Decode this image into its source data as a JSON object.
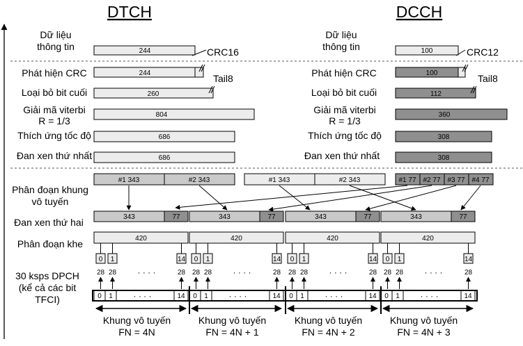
{
  "titles": {
    "dtch": "DTCH",
    "dcch": "DCCH"
  },
  "dtch_labels": [
    "Dữ liệu",
    "thông tin",
    "Phát hiện CRC",
    "Loại bỏ bit cuối",
    "Giải mã viterbi",
    "R = 1/3",
    "Thích ứng tốc độ",
    "Đan xen thứ nhất"
  ],
  "dcch_labels": [
    "Dữ liệu",
    "thông tin",
    "Phát hiện CRC",
    "Loại bỏ bit cuối",
    "Giải mã viterbi",
    "R = 1/3",
    "Thích ứng tốc độ",
    "Đan xen thứ nhất"
  ],
  "bottom_labels": [
    "Phân đoạn khung",
    "vô tuyến",
    "Đan xen thứ hai",
    "Phân đoạn khe",
    "30 ksps DPCH",
    "(kể cả các bit",
    "TFCI)"
  ],
  "annotations": {
    "crc16": "CRC16",
    "tail8_dtch": "Tail8",
    "crc12": "CRC12",
    "tail8_dcch": "Tail8"
  },
  "dtch_bars": [
    "244",
    "244",
    "260",
    "804",
    "686",
    "686"
  ],
  "dcch_bars": [
    "100",
    "100",
    "112",
    "360",
    "308",
    "308"
  ],
  "dtch_segments": [
    "#1  343",
    "#2  343"
  ],
  "dtch_segments_2": [
    "#1  343",
    "#2  343"
  ],
  "dcch_segments": [
    "#1 77",
    "#2 77",
    "#3 77",
    "#4 77"
  ],
  "interleave": {
    "left": "343",
    "right": "77"
  },
  "slot_value": "420",
  "slot_labels": [
    "0",
    "1",
    "14"
  ],
  "slot_number": "28",
  "dots": "· · · ·",
  "frames": [
    {
      "line1": "Khung vô tuyến",
      "line2": "FN = 4N"
    },
    {
      "line1": "Khung vô tuyến",
      "line2": "FN = 4N + 1"
    },
    {
      "line1": "Khung vô tuyến",
      "line2": "FN = 4N + 2"
    },
    {
      "line1": "Khung vô tuyến",
      "line2": "FN = 4N + 3"
    }
  ],
  "colors": {
    "light": "#ececec",
    "medium": "#c9c9c9",
    "dark": "#8f8f8f",
    "line": "#000000"
  }
}
